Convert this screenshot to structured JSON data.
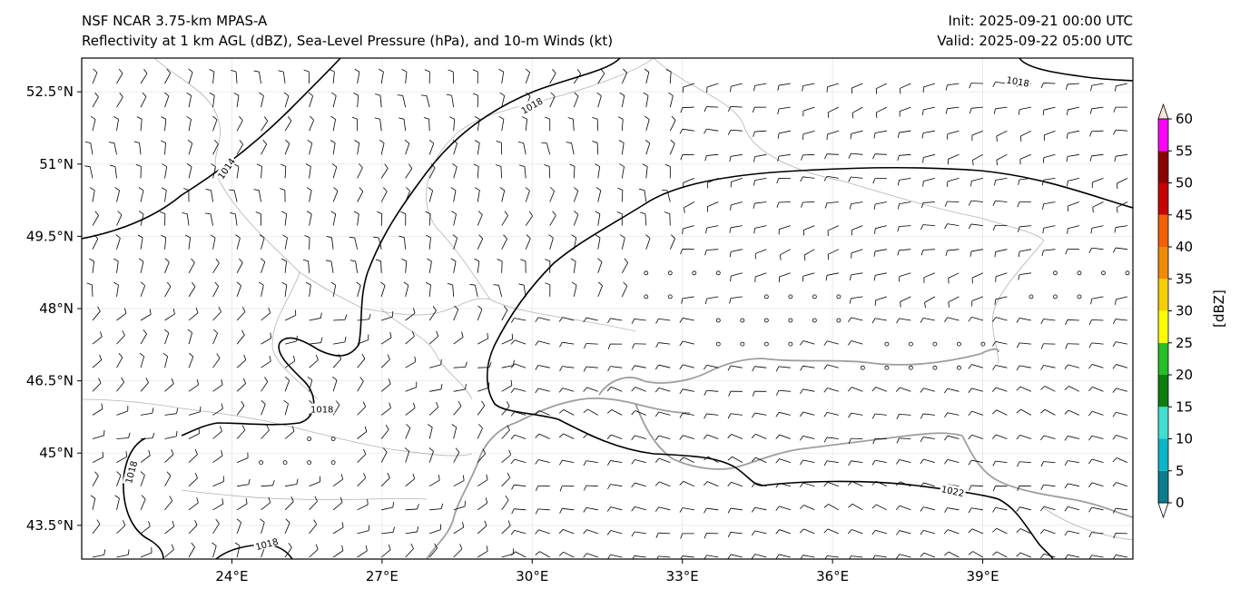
{
  "header": {
    "title_left_1": "NSF NCAR 3.75-km MPAS-A",
    "title_left_2": "Reflectivity at 1 km AGL (dBZ), Sea-Level Pressure (hPa), and 10-m Winds (kt)",
    "title_right_1": "Init: 2025-09-21 00:00 UTC",
    "title_right_2": "Valid: 2025-09-22 05:00 UTC"
  },
  "map": {
    "lon_range": [
      21,
      42
    ],
    "lat_range": [
      42.8,
      53.2
    ],
    "lat_ticks": [
      {
        "value": 52.5,
        "label": "52.5°N"
      },
      {
        "value": 51.0,
        "label": "51°N"
      },
      {
        "value": 49.5,
        "label": "49.5°N"
      },
      {
        "value": 48.0,
        "label": "48°N"
      },
      {
        "value": 46.5,
        "label": "46.5°N"
      },
      {
        "value": 45.0,
        "label": "45°N"
      },
      {
        "value": 43.5,
        "label": "43.5°N"
      }
    ],
    "lon_ticks": [
      {
        "value": 24,
        "label": "24°E"
      },
      {
        "value": 27,
        "label": "27°E"
      },
      {
        "value": 30,
        "label": "30°E"
      },
      {
        "value": 33,
        "label": "33°E"
      },
      {
        "value": 36,
        "label": "36°E"
      },
      {
        "value": 39,
        "label": "39°E"
      }
    ],
    "contour_labels": [
      {
        "text": "1014",
        "lon": 23.9,
        "lat": 50.9,
        "angle": -55
      },
      {
        "text": "1018",
        "lon": 30.0,
        "lat": 52.2,
        "angle": -30
      },
      {
        "text": "1018",
        "lon": 39.7,
        "lat": 52.7,
        "angle": 10
      },
      {
        "text": "1018",
        "lon": 25.8,
        "lat": 45.9,
        "angle": 0
      },
      {
        "text": "1018",
        "lon": 22.0,
        "lat": 44.6,
        "angle": -75
      },
      {
        "text": "1018",
        "lon": 24.7,
        "lat": 43.1,
        "angle": -15
      },
      {
        "text": "1022",
        "lon": 38.4,
        "lat": 44.2,
        "angle": 12
      }
    ]
  },
  "colorbar": {
    "label": "[dBZ]",
    "levels": [
      0,
      5,
      10,
      15,
      20,
      25,
      30,
      35,
      40,
      45,
      50,
      55,
      60
    ],
    "colors": [
      "#ffffff",
      "#0b7d8c",
      "#0ab6c8",
      "#3fdfd2",
      "#0b7f0b",
      "#26bf26",
      "#ffff00",
      "#f5cf00",
      "#f08a00",
      "#f26000",
      "#c80000",
      "#8c0000",
      "#ff00ff",
      "#ffe4d9"
    ]
  }
}
